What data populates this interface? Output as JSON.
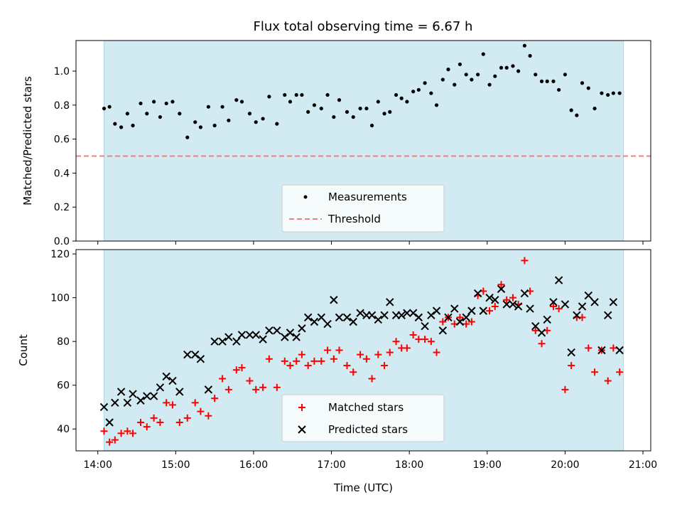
{
  "title": "Flux total observing time = 6.67 h",
  "colors": {
    "observing_window": "#add8e6",
    "threshold": "#f08080",
    "matched": "#ff0000",
    "predicted": "#000000",
    "measurement": "#000000"
  },
  "chart_data": [
    {
      "type": "scatter",
      "name": "ratio-panel",
      "ylabel": "Matched/Predicted stars",
      "xlabel": "",
      "ylim": [
        0,
        1.18
      ],
      "yticks": [
        0.0,
        0.2,
        0.4,
        0.6,
        0.8,
        1.0
      ],
      "ytick_labels": [
        "0.0",
        "0.2",
        "0.4",
        "0.6",
        "0.8",
        "1.0"
      ],
      "observing_window": [
        14.08,
        20.75
      ],
      "threshold": 0.5,
      "legend": {
        "position": "lower center",
        "entries": [
          "Measurements",
          "Threshold"
        ]
      },
      "series": [
        {
          "name": "Measurements",
          "x": [
            14.08,
            14.15,
            14.22,
            14.3,
            14.38,
            14.45,
            14.55,
            14.63,
            14.72,
            14.8,
            14.88,
            14.96,
            15.05,
            15.15,
            15.25,
            15.32,
            15.42,
            15.5,
            15.6,
            15.68,
            15.78,
            15.85,
            15.95,
            16.03,
            16.12,
            16.2,
            16.3,
            16.4,
            16.47,
            16.55,
            16.62,
            16.7,
            16.78,
            16.87,
            16.95,
            17.03,
            17.1,
            17.2,
            17.28,
            17.37,
            17.45,
            17.52,
            17.6,
            17.68,
            17.75,
            17.83,
            17.9,
            17.97,
            18.05,
            18.12,
            18.2,
            18.28,
            18.35,
            18.43,
            18.5,
            18.58,
            18.65,
            18.73,
            18.8,
            18.88,
            18.95,
            19.03,
            19.1,
            19.18,
            19.25,
            19.33,
            19.4,
            19.48,
            19.55,
            19.62,
            19.7,
            19.77,
            19.85,
            19.92,
            20.0,
            20.08,
            20.15,
            20.22,
            20.3,
            20.38,
            20.47,
            20.55,
            20.62,
            20.7
          ],
          "y": [
            0.78,
            0.79,
            0.69,
            0.67,
            0.75,
            0.68,
            0.81,
            0.75,
            0.82,
            0.73,
            0.81,
            0.82,
            0.75,
            0.61,
            0.7,
            0.67,
            0.79,
            0.68,
            0.79,
            0.71,
            0.83,
            0.82,
            0.75,
            0.7,
            0.72,
            0.85,
            0.69,
            0.86,
            0.82,
            0.86,
            0.86,
            0.76,
            0.8,
            0.78,
            0.86,
            0.73,
            0.83,
            0.76,
            0.73,
            0.78,
            0.78,
            0.68,
            0.82,
            0.75,
            0.76,
            0.86,
            0.84,
            0.82,
            0.88,
            0.89,
            0.93,
            0.87,
            0.8,
            0.95,
            1.01,
            0.92,
            1.04,
            0.98,
            0.95,
            0.98,
            1.1,
            0.92,
            0.97,
            1.02,
            1.02,
            1.03,
            1.0,
            1.15,
            1.09,
            0.98,
            0.94,
            0.94,
            0.94,
            0.89,
            0.98,
            0.77,
            0.74,
            0.93,
            0.9,
            0.78,
            0.87,
            0.86,
            0.87,
            0.87
          ]
        }
      ]
    },
    {
      "type": "scatter",
      "name": "count-panel",
      "ylabel": "Count",
      "xlabel": "Time (UTC)",
      "ylim": [
        30,
        122
      ],
      "yticks": [
        40,
        60,
        80,
        100,
        120
      ],
      "ytick_labels": [
        "40",
        "60",
        "80",
        "100",
        "120"
      ],
      "xlim": [
        13.72,
        21.1
      ],
      "xticks": [
        14,
        15,
        16,
        17,
        18,
        19,
        20,
        21
      ],
      "xtick_labels": [
        "14:00",
        "15:00",
        "16:00",
        "17:00",
        "18:00",
        "19:00",
        "20:00",
        "21:00"
      ],
      "observing_window": [
        14.08,
        20.75
      ],
      "legend": {
        "position": "lower center",
        "entries": [
          "Matched stars",
          "Predicted stars"
        ]
      },
      "series": [
        {
          "name": "Matched stars",
          "marker": "plus",
          "x": [
            14.08,
            14.15,
            14.22,
            14.3,
            14.38,
            14.45,
            14.55,
            14.63,
            14.72,
            14.8,
            14.88,
            14.96,
            15.05,
            15.15,
            15.25,
            15.32,
            15.42,
            15.5,
            15.6,
            15.68,
            15.78,
            15.85,
            15.95,
            16.03,
            16.12,
            16.2,
            16.3,
            16.4,
            16.47,
            16.55,
            16.62,
            16.7,
            16.78,
            16.87,
            16.95,
            17.03,
            17.1,
            17.2,
            17.28,
            17.37,
            17.45,
            17.52,
            17.6,
            17.68,
            17.75,
            17.83,
            17.9,
            17.97,
            18.05,
            18.12,
            18.2,
            18.28,
            18.35,
            18.43,
            18.5,
            18.58,
            18.65,
            18.73,
            18.8,
            18.88,
            18.95,
            19.03,
            19.1,
            19.18,
            19.25,
            19.33,
            19.4,
            19.48,
            19.55,
            19.62,
            19.7,
            19.77,
            19.85,
            19.92,
            20.0,
            20.08,
            20.15,
            20.22,
            20.3,
            20.38,
            20.47,
            20.55,
            20.62,
            20.7
          ],
          "y": [
            39,
            34,
            35,
            38,
            39,
            38,
            43,
            41,
            45,
            43,
            52,
            51,
            43,
            45,
            52,
            48,
            46,
            54,
            63,
            58,
            67,
            68,
            62,
            58,
            59,
            72,
            59,
            71,
            69,
            71,
            74,
            69,
            71,
            71,
            76,
            72,
            76,
            69,
            66,
            74,
            72,
            63,
            74,
            69,
            75,
            80,
            77,
            77,
            83,
            81,
            81,
            80,
            75,
            89,
            91,
            88,
            91,
            88,
            89,
            101,
            103,
            94,
            96,
            106,
            99,
            100,
            97,
            117,
            103,
            85,
            79,
            85,
            96,
            95,
            58,
            69,
            91,
            91,
            77,
            66,
            76,
            62,
            77,
            66
          ]
        },
        {
          "name": "Predicted stars",
          "marker": "x",
          "x": [
            14.08,
            14.15,
            14.22,
            14.3,
            14.38,
            14.45,
            14.55,
            14.63,
            14.72,
            14.8,
            14.88,
            14.96,
            15.05,
            15.15,
            15.25,
            15.32,
            15.42,
            15.5,
            15.6,
            15.68,
            15.78,
            15.85,
            15.95,
            16.03,
            16.12,
            16.2,
            16.3,
            16.4,
            16.47,
            16.55,
            16.62,
            16.7,
            16.78,
            16.87,
            16.95,
            17.03,
            17.1,
            17.2,
            17.28,
            17.37,
            17.45,
            17.52,
            17.6,
            17.68,
            17.75,
            17.83,
            17.9,
            17.97,
            18.05,
            18.12,
            18.2,
            18.28,
            18.35,
            18.43,
            18.5,
            18.58,
            18.65,
            18.73,
            18.8,
            18.88,
            18.95,
            19.03,
            19.1,
            19.18,
            19.25,
            19.33,
            19.4,
            19.48,
            19.55,
            19.62,
            19.7,
            19.77,
            19.85,
            19.92,
            20.0,
            20.08,
            20.15,
            20.22,
            20.3,
            20.38,
            20.47,
            20.55,
            20.62,
            20.7
          ],
          "y": [
            50,
            43,
            52,
            57,
            52,
            56,
            53,
            55,
            55,
            59,
            64,
            62,
            57,
            74,
            74,
            72,
            58,
            80,
            80,
            82,
            80,
            83,
            83,
            83,
            81,
            85,
            85,
            82,
            84,
            82,
            86,
            91,
            89,
            91,
            88,
            99,
            91,
            91,
            89,
            93,
            92,
            92,
            90,
            92,
            98,
            92,
            92,
            93,
            93,
            91,
            87,
            92,
            94,
            85,
            91,
            95,
            89,
            91,
            94,
            102,
            94,
            100,
            99,
            104,
            97,
            97,
            96,
            102,
            95,
            87,
            84,
            90,
            98,
            108,
            97,
            75,
            92,
            96,
            101,
            98,
            76,
            92,
            98,
            76
          ]
        }
      ]
    }
  ]
}
